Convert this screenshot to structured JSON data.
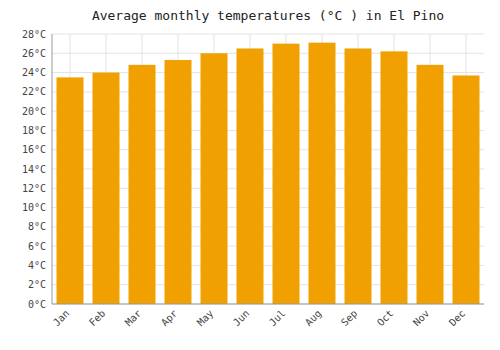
{
  "chart_data": {
    "type": "bar",
    "title": "Average monthly temperatures (°C ) in El Pino",
    "categories": [
      "Jan",
      "Feb",
      "Mar",
      "Apr",
      "May",
      "Jun",
      "Jul",
      "Aug",
      "Sep",
      "Oct",
      "Nov",
      "Dec"
    ],
    "values": [
      23.5,
      24.0,
      24.8,
      25.3,
      26.0,
      26.5,
      27.0,
      27.1,
      26.5,
      26.2,
      24.8,
      23.7
    ],
    "color": "#F0A000",
    "ylim": [
      0,
      28
    ],
    "yticks": [
      {
        "value": 0,
        "label": "0°C"
      },
      {
        "value": 2,
        "label": "2°C"
      },
      {
        "value": 4,
        "label": "4°C"
      },
      {
        "value": 6,
        "label": "6°C"
      },
      {
        "value": 8,
        "label": "8°C"
      },
      {
        "value": 10,
        "label": "10°C"
      },
      {
        "value": 12,
        "label": "12°C"
      },
      {
        "value": 14,
        "label": "14°C"
      },
      {
        "value": 16,
        "label": "16°C"
      },
      {
        "value": 18,
        "label": "18°C"
      },
      {
        "value": 20,
        "label": "20°C"
      },
      {
        "value": 22,
        "label": "22°C"
      },
      {
        "value": 24,
        "label": "24°C"
      },
      {
        "value": 26,
        "label": "26°C"
      },
      {
        "value": 28,
        "label": "28°C"
      }
    ],
    "grid": true
  }
}
